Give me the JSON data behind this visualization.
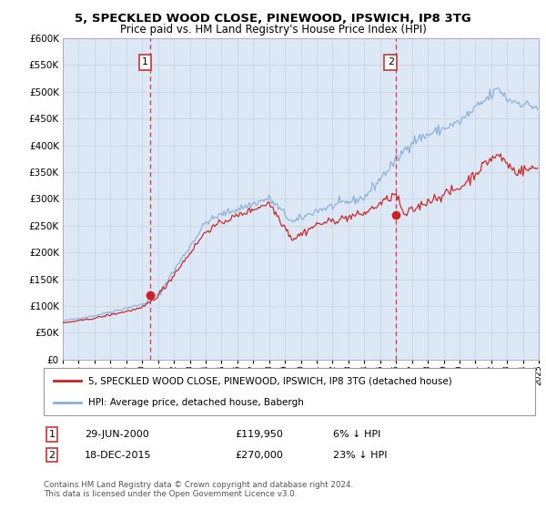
{
  "title": "5, SPECKLED WOOD CLOSE, PINEWOOD, IPSWICH, IP8 3TG",
  "subtitle": "Price paid vs. HM Land Registry's House Price Index (HPI)",
  "legend_line1": "5, SPECKLED WOOD CLOSE, PINEWOOD, IPSWICH, IP8 3TG (detached house)",
  "legend_line2": "HPI: Average price, detached house, Babergh",
  "annotation1_label": "1",
  "annotation1_date": "29-JUN-2000",
  "annotation1_price": "£119,950",
  "annotation1_hpi": "6% ↓ HPI",
  "annotation1_year": 2000.49,
  "annotation1_value": 119950,
  "annotation2_label": "2",
  "annotation2_date": "18-DEC-2015",
  "annotation2_price": "£270,000",
  "annotation2_hpi": "23% ↓ HPI",
  "annotation2_year": 2015.96,
  "annotation2_value": 270000,
  "hpi_line_color": "#8ab0d8",
  "price_line_color": "#cc2222",
  "background_color": "#ffffff",
  "plot_bg_color": "#dce8f5",
  "vline_color": "#dd3333",
  "grid_color": "#c8d0dc",
  "ylim": [
    0,
    600000
  ],
  "ytick_step": 50000,
  "footnote": "Contains HM Land Registry data © Crown copyright and database right 2024.\nThis data is licensed under the Open Government Licence v3.0.",
  "start_year": 1995,
  "end_year": 2025,
  "seed": 42
}
